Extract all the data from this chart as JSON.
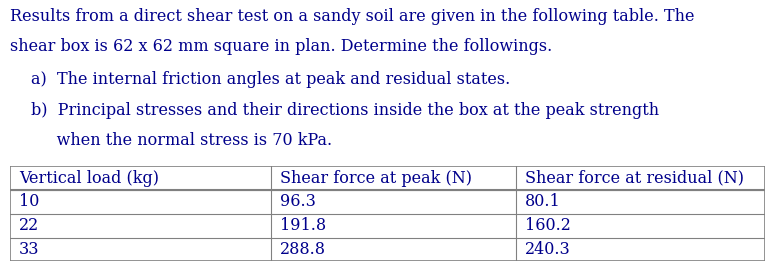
{
  "title_line1": "Results from a direct shear test on a sandy soil are given in the following table. The",
  "title_line2": "shear box is 62 x 62 mm square in plan. Determine the followings.",
  "items": [
    "a)  The internal friction angles at peak and residual states.",
    "b)  Principal stresses and their directions inside the box at the peak strength\n     when the normal stress is 70 kPa."
  ],
  "col_headers": [
    "Vertical load (kg)",
    "Shear force at peak (N)",
    "Shear force at residual (N)"
  ],
  "table_data": [
    [
      "10",
      "96.3",
      "80.1"
    ],
    [
      "22",
      "191.8",
      "160.2"
    ],
    [
      "33",
      "288.8",
      "240.3"
    ]
  ],
  "text_color": "#00008B",
  "bg_color": "#ffffff",
  "font_family": "serif",
  "title_fontsize": 11.5,
  "body_fontsize": 11.5,
  "table_fontsize": 11.5
}
